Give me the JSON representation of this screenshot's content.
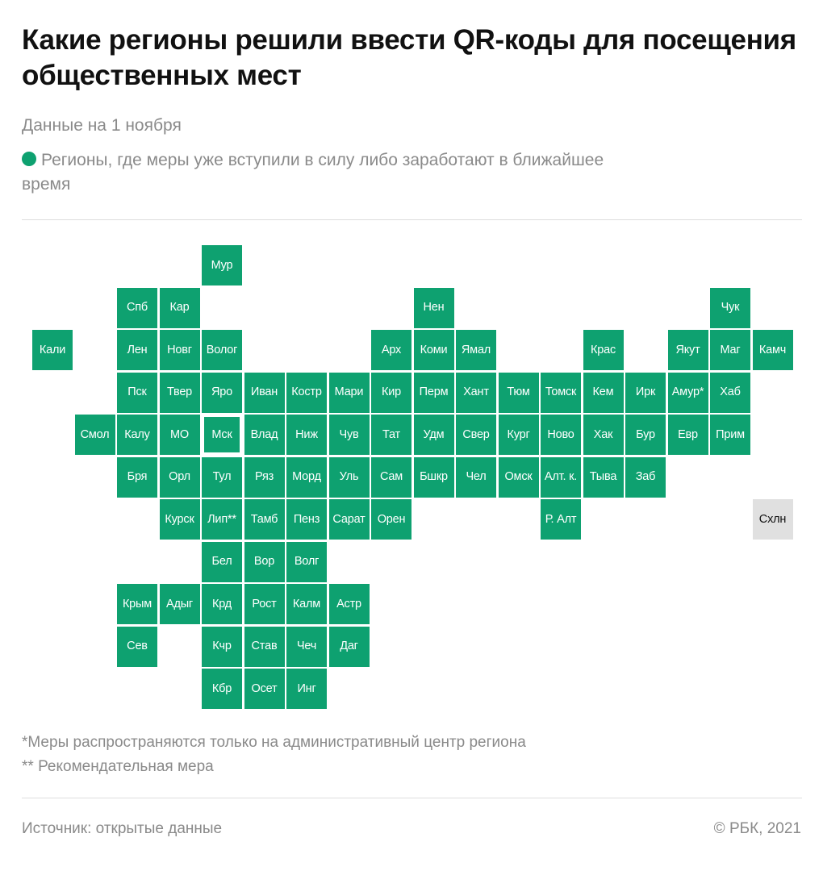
{
  "title": "Какие регионы решили ввести QR-коды для посещения общественных мест",
  "subtitle": "Данные на 1 ноября",
  "legend": {
    "label": "Регионы, где меры уже вступили в силу либо заработают в ближайшее время",
    "color": "#0ea170"
  },
  "colors": {
    "active": "#0ea170",
    "inactive": "#e0e0e0"
  },
  "regions": [
    {
      "label": "Мур",
      "col": 5,
      "row": 0,
      "active": true
    },
    {
      "label": "Спб",
      "col": 3,
      "row": 1,
      "active": true
    },
    {
      "label": "Кар",
      "col": 4,
      "row": 1,
      "active": true
    },
    {
      "label": "Нен",
      "col": 10,
      "row": 1,
      "active": true
    },
    {
      "label": "Чук",
      "col": 17,
      "row": 1,
      "active": true
    },
    {
      "label": "Кали",
      "col": 1,
      "row": 2,
      "active": true
    },
    {
      "label": "Лен",
      "col": 3,
      "row": 2,
      "active": true
    },
    {
      "label": "Новг",
      "col": 4,
      "row": 2,
      "active": true
    },
    {
      "label": "Волог",
      "col": 5,
      "row": 2,
      "active": true
    },
    {
      "label": "Арх",
      "col": 9,
      "row": 2,
      "active": true
    },
    {
      "label": "Коми",
      "col": 10,
      "row": 2,
      "active": true
    },
    {
      "label": "Ямал",
      "col": 11,
      "row": 2,
      "active": true
    },
    {
      "label": "Крас",
      "col": 14,
      "row": 2,
      "active": true
    },
    {
      "label": "Якут",
      "col": 16,
      "row": 2,
      "active": true
    },
    {
      "label": "Маг",
      "col": 17,
      "row": 2,
      "active": true
    },
    {
      "label": "Камч",
      "col": 18,
      "row": 2,
      "active": true
    },
    {
      "label": "Пск",
      "col": 3,
      "row": 3,
      "active": true
    },
    {
      "label": "Твер",
      "col": 4,
      "row": 3,
      "active": true
    },
    {
      "label": "Яро",
      "col": 5,
      "row": 3,
      "active": true
    },
    {
      "label": "Иван",
      "col": 6,
      "row": 3,
      "active": true
    },
    {
      "label": "Костр",
      "col": 7,
      "row": 3,
      "active": true
    },
    {
      "label": "Мари",
      "col": 8,
      "row": 3,
      "active": true
    },
    {
      "label": "Кир",
      "col": 9,
      "row": 3,
      "active": true
    },
    {
      "label": "Перм",
      "col": 10,
      "row": 3,
      "active": true
    },
    {
      "label": "Хант",
      "col": 11,
      "row": 3,
      "active": true
    },
    {
      "label": "Тюм",
      "col": 12,
      "row": 3,
      "active": true
    },
    {
      "label": "Томск",
      "col": 13,
      "row": 3,
      "active": true
    },
    {
      "label": "Кем",
      "col": 14,
      "row": 3,
      "active": true
    },
    {
      "label": "Ирк",
      "col": 15,
      "row": 3,
      "active": true
    },
    {
      "label": "Амур*",
      "col": 16,
      "row": 3,
      "active": true
    },
    {
      "label": "Хаб",
      "col": 17,
      "row": 3,
      "active": true
    },
    {
      "label": "Смол",
      "col": 2,
      "row": 4,
      "active": true
    },
    {
      "label": "Калу",
      "col": 3,
      "row": 4,
      "active": true
    },
    {
      "label": "МО",
      "col": 4,
      "row": 4,
      "active": true
    },
    {
      "label": "Мск",
      "col": 5,
      "row": 4,
      "active": true,
      "highlight": true
    },
    {
      "label": "Влад",
      "col": 6,
      "row": 4,
      "active": true
    },
    {
      "label": "Ниж",
      "col": 7,
      "row": 4,
      "active": true
    },
    {
      "label": "Чув",
      "col": 8,
      "row": 4,
      "active": true
    },
    {
      "label": "Тат",
      "col": 9,
      "row": 4,
      "active": true
    },
    {
      "label": "Удм",
      "col": 10,
      "row": 4,
      "active": true
    },
    {
      "label": "Свер",
      "col": 11,
      "row": 4,
      "active": true
    },
    {
      "label": "Кург",
      "col": 12,
      "row": 4,
      "active": true
    },
    {
      "label": "Ново",
      "col": 13,
      "row": 4,
      "active": true
    },
    {
      "label": "Хак",
      "col": 14,
      "row": 4,
      "active": true
    },
    {
      "label": "Бур",
      "col": 15,
      "row": 4,
      "active": true
    },
    {
      "label": "Евр",
      "col": 16,
      "row": 4,
      "active": true
    },
    {
      "label": "Прим",
      "col": 17,
      "row": 4,
      "active": true
    },
    {
      "label": "Бря",
      "col": 3,
      "row": 5,
      "active": true
    },
    {
      "label": "Орл",
      "col": 4,
      "row": 5,
      "active": true
    },
    {
      "label": "Тул",
      "col": 5,
      "row": 5,
      "active": true
    },
    {
      "label": "Ряз",
      "col": 6,
      "row": 5,
      "active": true
    },
    {
      "label": "Морд",
      "col": 7,
      "row": 5,
      "active": true
    },
    {
      "label": "Уль",
      "col": 8,
      "row": 5,
      "active": true
    },
    {
      "label": "Сам",
      "col": 9,
      "row": 5,
      "active": true
    },
    {
      "label": "Бшкр",
      "col": 10,
      "row": 5,
      "active": true
    },
    {
      "label": "Чел",
      "col": 11,
      "row": 5,
      "active": true
    },
    {
      "label": "Омск",
      "col": 12,
      "row": 5,
      "active": true
    },
    {
      "label": "Алт. к.",
      "col": 13,
      "row": 5,
      "active": true
    },
    {
      "label": "Тыва",
      "col": 14,
      "row": 5,
      "active": true
    },
    {
      "label": "Заб",
      "col": 15,
      "row": 5,
      "active": true
    },
    {
      "label": "Курск",
      "col": 4,
      "row": 6,
      "active": true
    },
    {
      "label": "Лип**",
      "col": 5,
      "row": 6,
      "active": true
    },
    {
      "label": "Тамб",
      "col": 6,
      "row": 6,
      "active": true
    },
    {
      "label": "Пенз",
      "col": 7,
      "row": 6,
      "active": true
    },
    {
      "label": "Сарат",
      "col": 8,
      "row": 6,
      "active": true
    },
    {
      "label": "Орен",
      "col": 9,
      "row": 6,
      "active": true
    },
    {
      "label": "Р. Алт",
      "col": 13,
      "row": 6,
      "active": true
    },
    {
      "label": "Схлн",
      "col": 18,
      "row": 6,
      "active": false
    },
    {
      "label": "Бел",
      "col": 5,
      "row": 7,
      "active": true
    },
    {
      "label": "Вор",
      "col": 6,
      "row": 7,
      "active": true
    },
    {
      "label": "Волг",
      "col": 7,
      "row": 7,
      "active": true
    },
    {
      "label": "Крым",
      "col": 3,
      "row": 8,
      "active": true
    },
    {
      "label": "Адыг",
      "col": 4,
      "row": 8,
      "active": true
    },
    {
      "label": "Крд",
      "col": 5,
      "row": 8,
      "active": true
    },
    {
      "label": "Рост",
      "col": 6,
      "row": 8,
      "active": true
    },
    {
      "label": "Калм",
      "col": 7,
      "row": 8,
      "active": true
    },
    {
      "label": "Астр",
      "col": 8,
      "row": 8,
      "active": true
    },
    {
      "label": "Сев",
      "col": 3,
      "row": 9,
      "active": true
    },
    {
      "label": "Кчр",
      "col": 5,
      "row": 9,
      "active": true
    },
    {
      "label": "Став",
      "col": 6,
      "row": 9,
      "active": true
    },
    {
      "label": "Чеч",
      "col": 7,
      "row": 9,
      "active": true
    },
    {
      "label": "Даг",
      "col": 8,
      "row": 9,
      "active": true
    },
    {
      "label": "Кбр",
      "col": 5,
      "row": 10,
      "active": true
    },
    {
      "label": "Осет",
      "col": 6,
      "row": 10,
      "active": true
    },
    {
      "label": "Инг",
      "col": 7,
      "row": 10,
      "active": true
    }
  ],
  "notes": [
    "*Меры распространяются только на административный центр региона",
    "** Рекомендательная мера"
  ],
  "footer": {
    "source": "Источник:  открытые данные",
    "copyright": "©  РБК, 2021"
  }
}
